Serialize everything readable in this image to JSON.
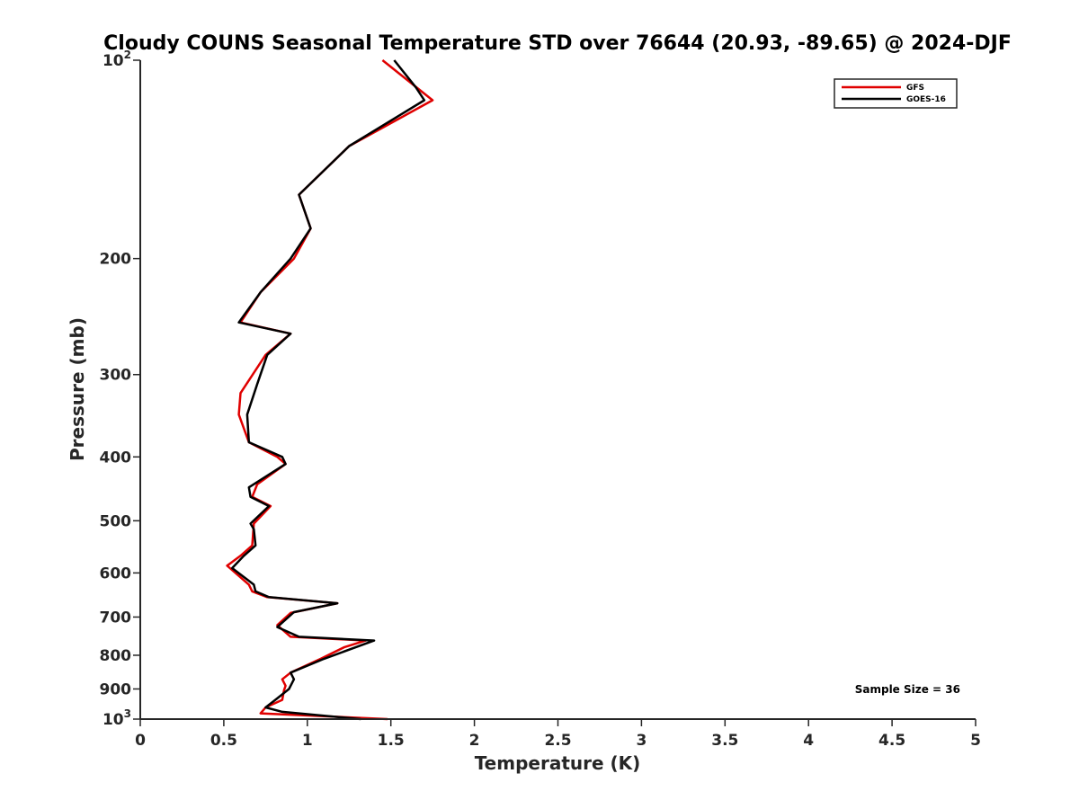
{
  "chart_data": {
    "type": "line",
    "title": "Cloudy COUNS Seasonal Temperature STD over 76644 (20.93, -89.65) @ 2024-DJF",
    "xlabel": "Temperature (K)",
    "ylabel": "Pressure (mb)",
    "xlim": [
      0,
      5
    ],
    "ylim": [
      100,
      1000
    ],
    "yscale": "log",
    "y_reversed": true,
    "x_ticks": [
      0,
      0.5,
      1,
      1.5,
      2,
      2.5,
      3,
      3.5,
      4,
      4.5,
      5
    ],
    "x_tick_labels": [
      "0",
      "0.5",
      "1",
      "1.5",
      "2",
      "2.5",
      "3",
      "3.5",
      "4",
      "4.5",
      "5"
    ],
    "y_ticks": [
      {
        "value": 100,
        "label": "10",
        "exp": "2"
      },
      {
        "value": 200,
        "label": "200"
      },
      {
        "value": 300,
        "label": "300"
      },
      {
        "value": 400,
        "label": "400"
      },
      {
        "value": 500,
        "label": "500"
      },
      {
        "value": 600,
        "label": "600"
      },
      {
        "value": 700,
        "label": "700"
      },
      {
        "value": 800,
        "label": "800"
      },
      {
        "value": 900,
        "label": "900"
      },
      {
        "value": 1000,
        "label": "10",
        "exp": "3"
      }
    ],
    "legend_position": "top-right",
    "annotation": "Sample Size = 36",
    "series": [
      {
        "name": "GFS",
        "color": "#e00000",
        "points": [
          [
            1.45,
            100
          ],
          [
            1.75,
            115
          ],
          [
            1.25,
            135
          ],
          [
            0.95,
            160
          ],
          [
            1.02,
            180
          ],
          [
            0.92,
            200
          ],
          [
            0.72,
            225
          ],
          [
            0.6,
            250
          ],
          [
            0.9,
            260
          ],
          [
            0.75,
            280
          ],
          [
            0.6,
            320
          ],
          [
            0.59,
            345
          ],
          [
            0.65,
            380
          ],
          [
            0.82,
            400
          ],
          [
            0.87,
            410
          ],
          [
            0.7,
            440
          ],
          [
            0.67,
            460
          ],
          [
            0.78,
            475
          ],
          [
            0.68,
            505
          ],
          [
            0.67,
            545
          ],
          [
            0.6,
            565
          ],
          [
            0.52,
            585
          ],
          [
            0.65,
            625
          ],
          [
            0.67,
            640
          ],
          [
            0.76,
            653
          ],
          [
            1.18,
            667
          ],
          [
            0.9,
            690
          ],
          [
            0.82,
            720
          ],
          [
            0.9,
            750
          ],
          [
            1.35,
            760
          ],
          [
            1.22,
            778
          ],
          [
            1.08,
            810
          ],
          [
            0.9,
            850
          ],
          [
            0.85,
            870
          ],
          [
            0.87,
            890
          ],
          [
            0.86,
            905
          ],
          [
            0.85,
            935
          ],
          [
            0.75,
            960
          ],
          [
            0.72,
            980
          ],
          [
            1.48,
            1000
          ]
        ]
      },
      {
        "name": "GOES-16",
        "color": "#000000",
        "points": [
          [
            1.52,
            100
          ],
          [
            1.65,
            110
          ],
          [
            1.7,
            115
          ],
          [
            1.25,
            135
          ],
          [
            0.95,
            160
          ],
          [
            1.02,
            180
          ],
          [
            0.9,
            200
          ],
          [
            0.72,
            225
          ],
          [
            0.59,
            250
          ],
          [
            0.9,
            260
          ],
          [
            0.76,
            280
          ],
          [
            0.7,
            310
          ],
          [
            0.64,
            345
          ],
          [
            0.65,
            380
          ],
          [
            0.85,
            400
          ],
          [
            0.87,
            410
          ],
          [
            0.65,
            445
          ],
          [
            0.66,
            460
          ],
          [
            0.77,
            475
          ],
          [
            0.66,
            505
          ],
          [
            0.68,
            515
          ],
          [
            0.69,
            545
          ],
          [
            0.62,
            565
          ],
          [
            0.55,
            590
          ],
          [
            0.68,
            625
          ],
          [
            0.69,
            640
          ],
          [
            0.77,
            653
          ],
          [
            1.18,
            667
          ],
          [
            0.92,
            688
          ],
          [
            0.82,
            725
          ],
          [
            0.95,
            750
          ],
          [
            1.4,
            760
          ],
          [
            1.1,
            810
          ],
          [
            0.9,
            850
          ],
          [
            0.92,
            870
          ],
          [
            0.89,
            900
          ],
          [
            0.82,
            930
          ],
          [
            0.75,
            960
          ],
          [
            0.85,
            975
          ],
          [
            1.32,
            1000
          ]
        ]
      }
    ]
  }
}
